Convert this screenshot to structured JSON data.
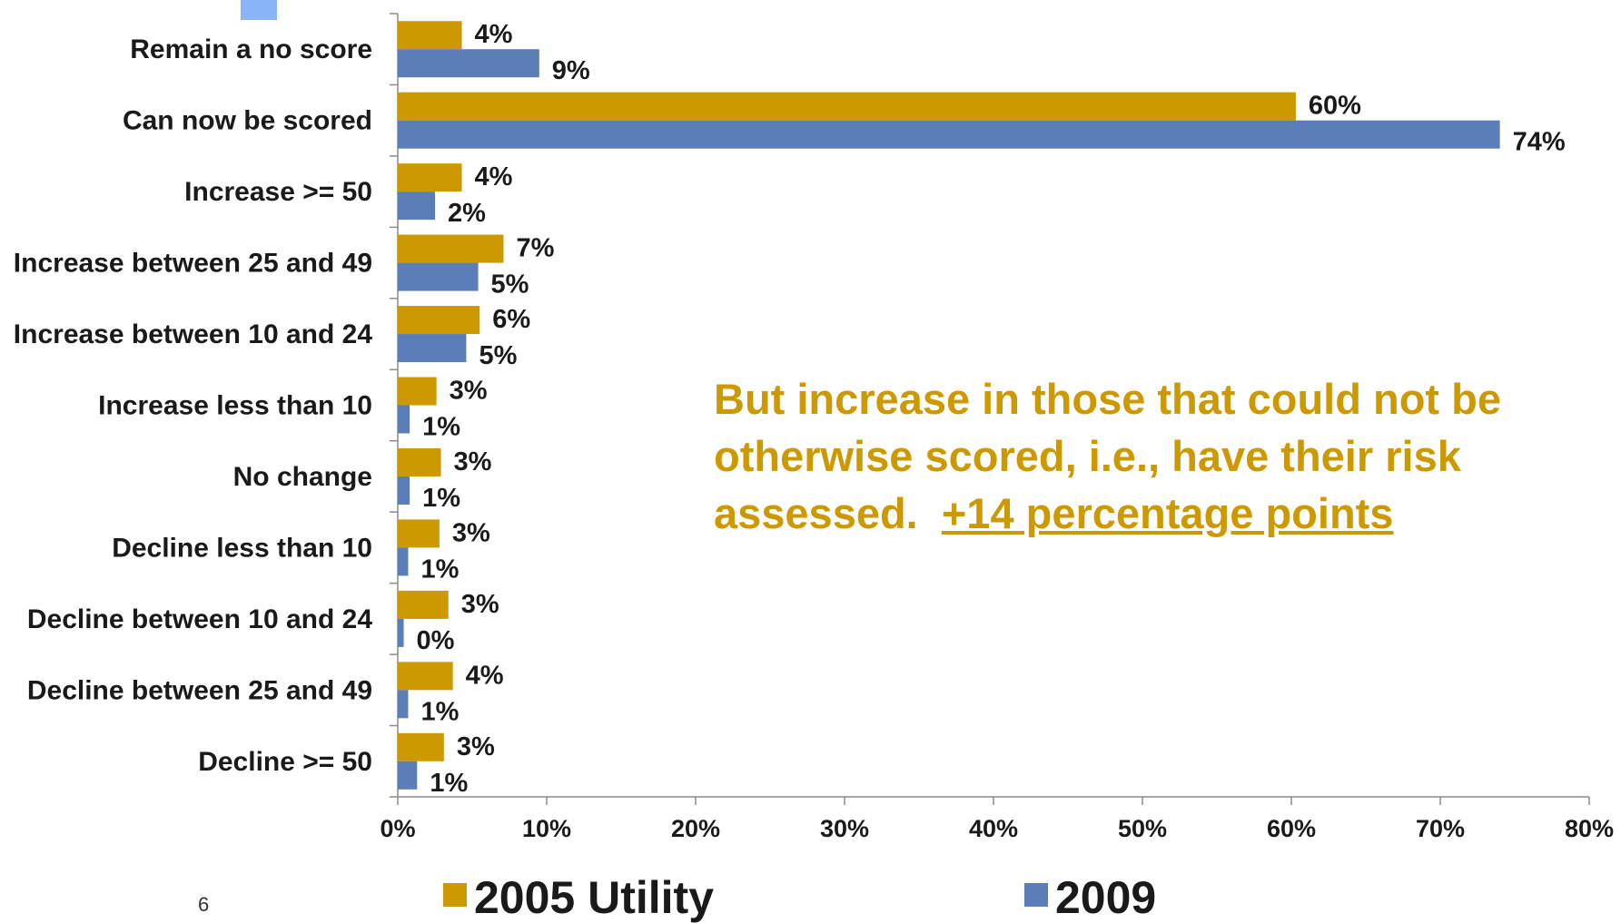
{
  "chart_data": {
    "type": "bar",
    "orientation": "horizontal",
    "categories": [
      "Remain a no score",
      "Can now be scored",
      "Increase >= 50",
      "Increase between 25 and 49",
      "Increase between 10 and 24",
      "Increase less than 10",
      "No change",
      "Decline less than 10",
      "Decline between 10 and 24",
      "Decline between 25 and 49",
      "Decline >= 50"
    ],
    "series": [
      {
        "name": "2005 Utility",
        "color": "#CC9900",
        "values": [
          4.3,
          60.3,
          4.3,
          7.1,
          5.5,
          2.6,
          2.9,
          2.8,
          3.4,
          3.7,
          3.1
        ],
        "labels": [
          "4%",
          "60%",
          "4%",
          "7%",
          "6%",
          "3%",
          "3%",
          "3%",
          "3%",
          "4%",
          "3%"
        ]
      },
      {
        "name": "2009",
        "color": "#5B7DB8",
        "values": [
          9.5,
          74.0,
          2.5,
          5.4,
          4.6,
          0.8,
          0.8,
          0.7,
          0.4,
          0.7,
          1.3
        ],
        "labels": [
          "9%",
          "74%",
          "2%",
          "5%",
          "5%",
          "1%",
          "1%",
          "1%",
          "0%",
          "1%",
          "1%"
        ]
      }
    ],
    "xlim": [
      0,
      80
    ],
    "x_ticks": [
      "0%",
      "10%",
      "20%",
      "30%",
      "40%",
      "50%",
      "60%",
      "70%",
      "80%"
    ],
    "legend_position": "bottom",
    "grid": false
  },
  "annotation": {
    "line1": "But increase in those that could not be",
    "line2": "otherwise scored, i.e., have their risk",
    "line3_prefix": "assessed.  ",
    "line3_highlight": "+14 percentage points",
    "color": "#CC9900"
  },
  "page_number": "6",
  "corner_marker_color": "#8AB4F8"
}
